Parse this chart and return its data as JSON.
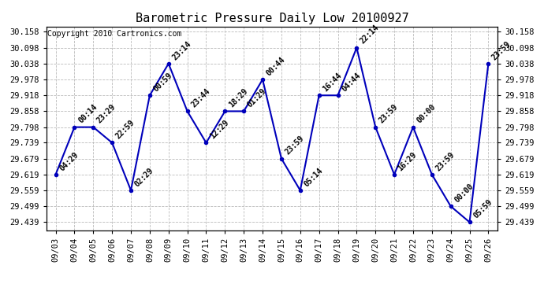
{
  "title": "Barometric Pressure Daily Low 20100927",
  "copyright": "Copyright 2010 Cartronics.com",
  "x_labels": [
    "09/03",
    "09/04",
    "09/05",
    "09/06",
    "09/07",
    "09/08",
    "09/09",
    "09/10",
    "09/11",
    "09/12",
    "09/13",
    "09/14",
    "09/15",
    "09/16",
    "09/17",
    "09/18",
    "09/19",
    "09/20",
    "09/21",
    "09/22",
    "09/23",
    "09/24",
    "09/25",
    "09/26"
  ],
  "x_values": [
    0,
    1,
    2,
    3,
    4,
    5,
    6,
    7,
    8,
    9,
    10,
    11,
    12,
    13,
    14,
    15,
    16,
    17,
    18,
    19,
    20,
    21,
    22,
    23
  ],
  "y_values": [
    29.619,
    29.798,
    29.798,
    29.739,
    29.559,
    29.918,
    30.038,
    29.858,
    29.739,
    29.858,
    29.858,
    29.978,
    29.679,
    29.559,
    29.918,
    29.918,
    30.098,
    29.798,
    29.619,
    29.798,
    29.619,
    29.499,
    29.439,
    30.038
  ],
  "point_labels": [
    "04:29",
    "00:14",
    "23:29",
    "22:59",
    "02:29",
    "00:59",
    "23:14",
    "23:44",
    "12:29",
    "18:29",
    "01:29",
    "00:44",
    "23:59",
    "05:14",
    "16:44",
    "04:44",
    "22:14",
    "23:59",
    "16:29",
    "00:00",
    "23:59",
    "00:00",
    "05:59",
    "23:59"
  ],
  "y_ticks": [
    29.439,
    29.499,
    29.559,
    29.619,
    29.679,
    29.739,
    29.798,
    29.858,
    29.918,
    29.978,
    30.038,
    30.098,
    30.158
  ],
  "ylim": [
    29.409,
    30.178
  ],
  "xlim": [
    -0.5,
    23.5
  ],
  "line_color": "#0000bb",
  "marker_color": "#0000bb",
  "bg_color": "#ffffff",
  "grid_color": "#bbbbbb",
  "title_fontsize": 11,
  "copyright_fontsize": 7,
  "label_fontsize": 7,
  "tick_fontsize": 7.5
}
